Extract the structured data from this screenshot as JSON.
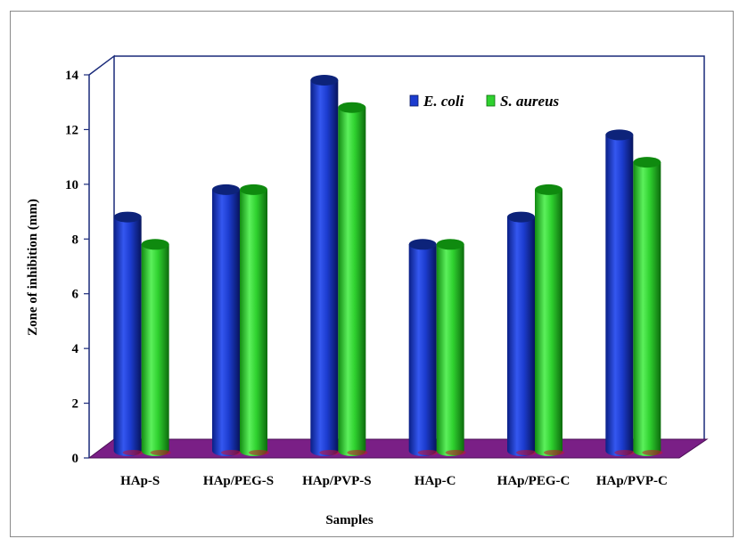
{
  "chart_data": {
    "type": "bar",
    "categories": [
      "HAp-S",
      "HAp/PEG-S",
      "HAp/PVP-S",
      "HAp-C",
      "HAp/PEG-C",
      "HAp/PVP-C"
    ],
    "series": [
      {
        "name": "E. coli",
        "values": [
          9,
          10,
          14,
          8,
          9,
          12
        ],
        "color": "#1c3ccf"
      },
      {
        "name": "S. aureus",
        "values": [
          8,
          10,
          13,
          8,
          10,
          11
        ],
        "color": "#2fd12f"
      }
    ],
    "xlabel": "Samples",
    "ylabel": "Zone of inhibition (mm)",
    "ylim": [
      0,
      14
    ],
    "yticks": [
      0,
      2,
      4,
      6,
      8,
      10,
      12,
      14
    ],
    "legend_position": "top-right",
    "floor_color": "#7a1f86",
    "grid": false
  }
}
